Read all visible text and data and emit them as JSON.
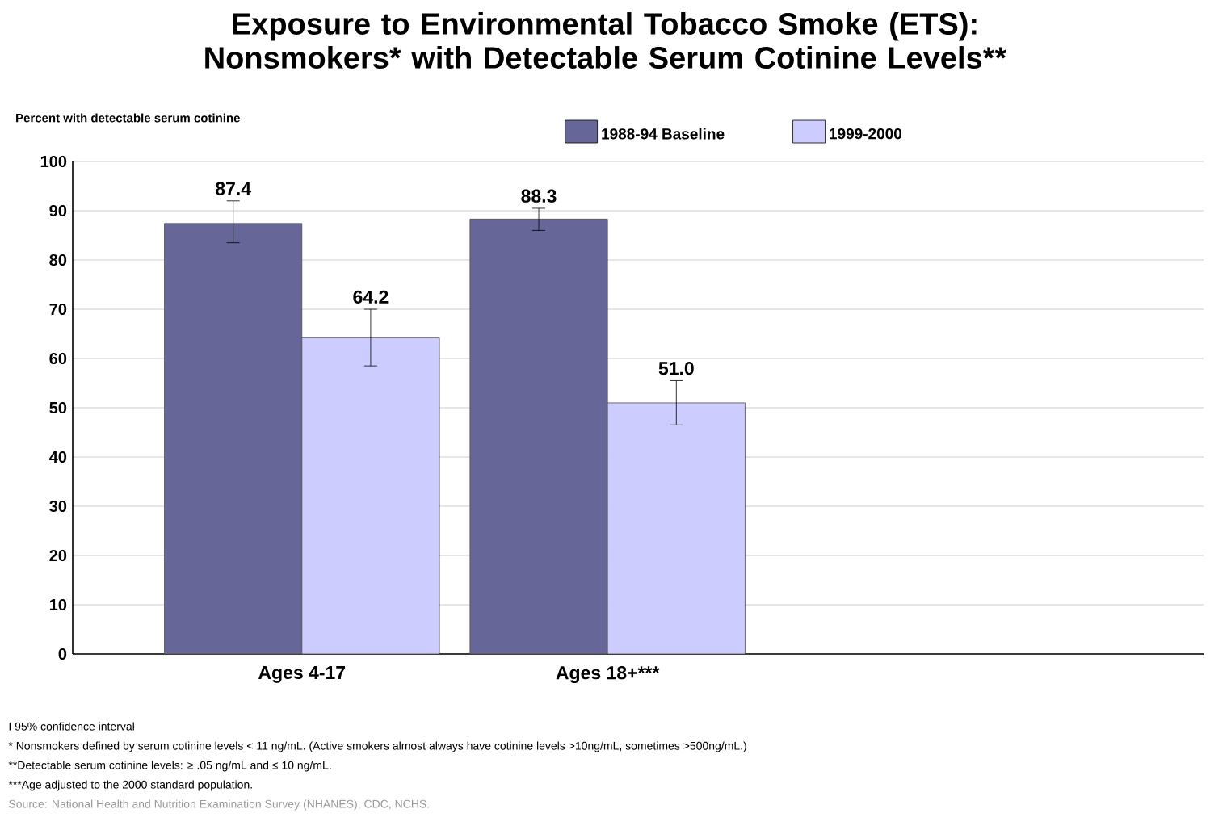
{
  "chart_data": {
    "type": "bar",
    "title": "Exposure to Environmental Tobacco Smoke (ETS): Nonsmokers* with Detectable Serum Cotinine Levels**",
    "ylabel": "Percent with detectable serum cotinine",
    "categories": [
      "Ages 4-17",
      "Ages 18+***",
      null
    ],
    "series": [
      {
        "name": "1988-94 Baseline",
        "color": "#666699",
        "values": [
          87.4,
          88.3,
          null
        ],
        "value_labels": [
          "87.4",
          "88.3",
          null
        ],
        "errors": [
          [
            83.5,
            92
          ],
          [
            86,
            90.5
          ],
          null
        ]
      },
      {
        "name": "1999-2000",
        "color": "#ccccff",
        "values": [
          64.2,
          51.0,
          null
        ],
        "value_labels": [
          "64.2",
          "51.0",
          null
        ],
        "errors": [
          [
            58.5,
            70
          ],
          [
            46.5,
            55.5
          ],
          null
        ]
      }
    ],
    "ylim": [
      0,
      100
    ],
    "yticks": [
      0,
      10,
      20,
      30,
      40,
      50,
      60,
      70,
      80,
      90,
      100
    ],
    "grid": "y",
    "legend": "top",
    "annotations": [
      "I 95% confidence interval",
      "* Nonsmokers defined by serum cotinine levels < 11 ng/mL. (Active smokers almost always have cotinine levels >10ng/mL, sometimes >500ng/mL.)",
      "**Detectable serum cotinine levels: ≥ .05 ng/mL and ≤ 10 ng/mL.",
      "***Age adjusted to the 2000 standard population.",
      "Source: National Health and Nutrition Examination Survey (NHANES), CDC, NCHS."
    ]
  }
}
